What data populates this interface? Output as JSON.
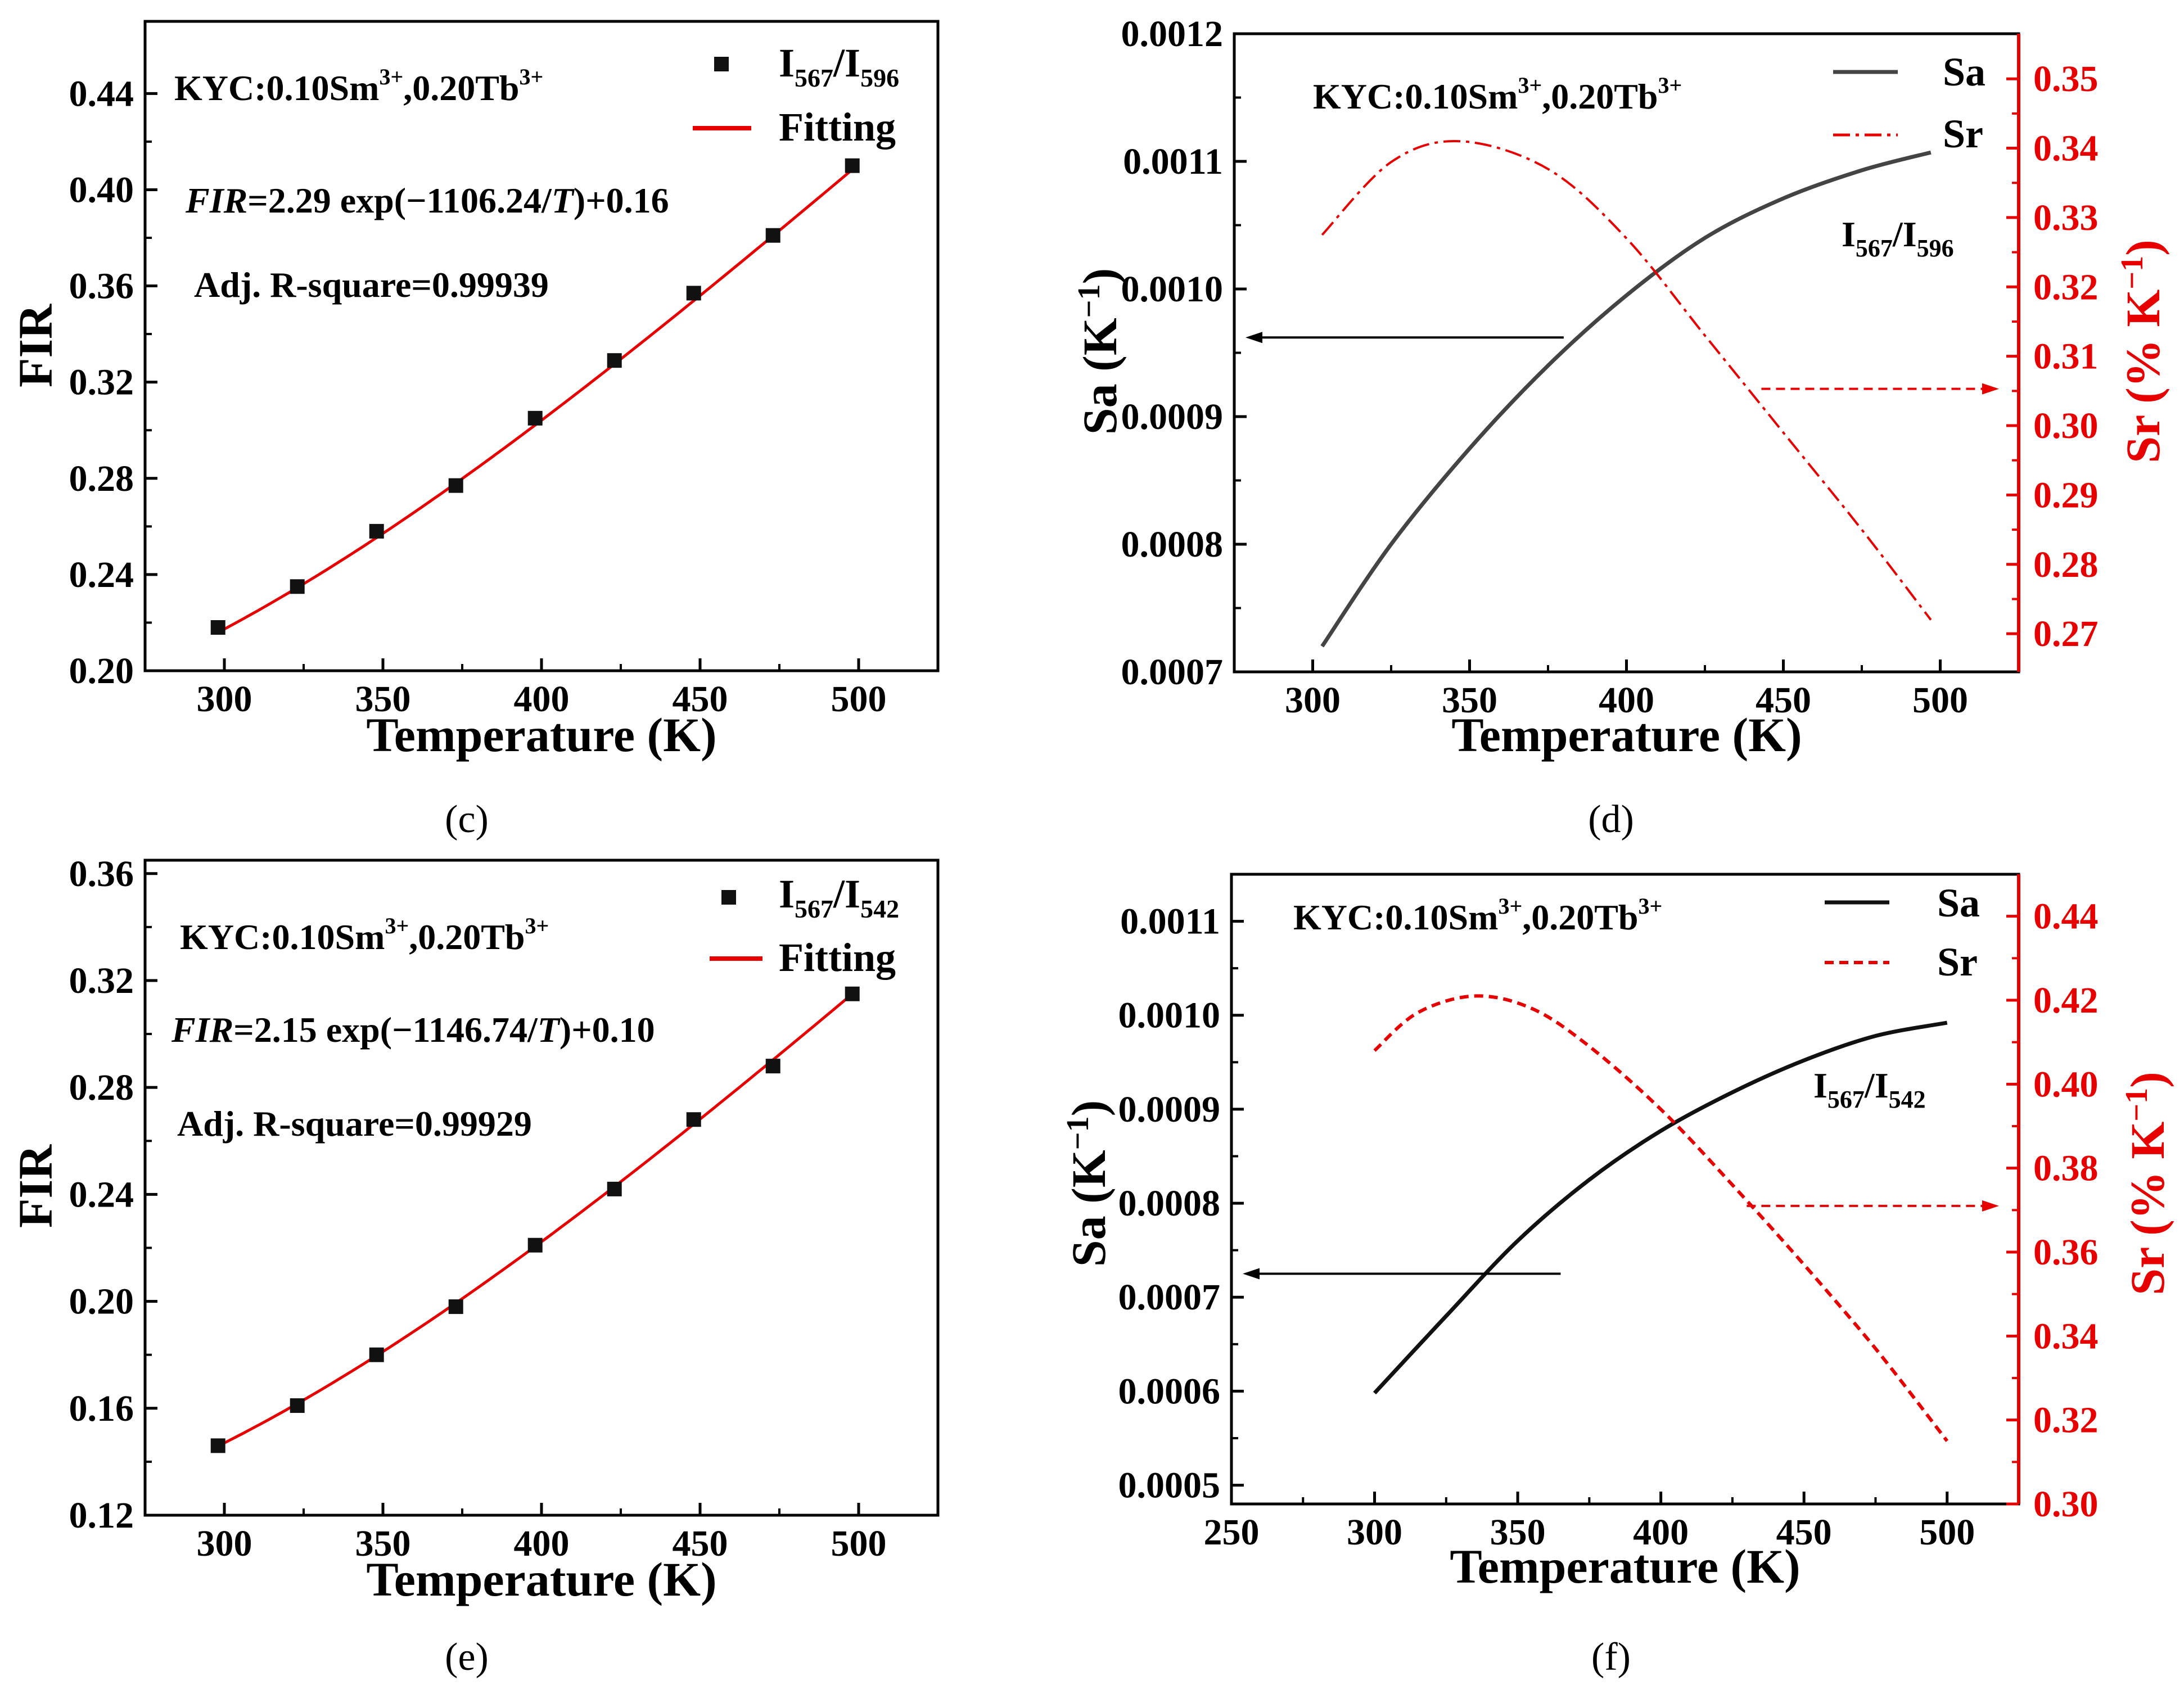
{
  "figure": {
    "panels": [
      "c",
      "d",
      "e",
      "f"
    ]
  },
  "chart_data": [
    {
      "id": "c",
      "type": "scatter",
      "panel_label": "(c)",
      "xlabel": "Temperature (K)",
      "ylabel": "FIR",
      "xlim": [
        275,
        525
      ],
      "ylim": [
        0.2,
        0.47
      ],
      "xticks": [
        300,
        350,
        400,
        450,
        500
      ],
      "yticks": [
        0.2,
        0.24,
        0.28,
        0.32,
        0.36,
        0.4,
        0.44
      ],
      "ytick_labels": [
        "0.20",
        "0.24",
        "0.28",
        "0.32",
        "0.36",
        "0.40",
        "0.44"
      ],
      "sample_text": "KYC:0.10Sm",
      "sample_sup1": "3+",
      "sample_mid": ",0.20Tb",
      "sample_sup2": "3+",
      "equation_fir": "FIR",
      "equation_part1": "=2.29 exp(−1106.24/",
      "equation_T": "T",
      "equation_part2": ")+0.16",
      "r_square": "Adj. R-square=0.99939",
      "legend_scatter_base": "I",
      "legend_scatter_sub1": "567",
      "legend_scatter_slash": "/I",
      "legend_scatter_sub2": "596",
      "legend_fit": "Fitting",
      "fit_params": {
        "A": 2.29,
        "B": 1106.24,
        "C": 0.16
      },
      "fit_range": [
        298,
        498
      ],
      "series": [
        {
          "name": "I567/I596",
          "x": [
            298,
            323,
            348,
            373,
            398,
            423,
            448,
            473,
            498
          ],
          "y": [
            0.218,
            0.235,
            0.258,
            0.277,
            0.305,
            0.329,
            0.357,
            0.381,
            0.41
          ]
        }
      ],
      "colors": {
        "points": "#111111",
        "fit": "#e60000"
      }
    },
    {
      "id": "d",
      "type": "line",
      "panel_label": "(d)",
      "xlabel": "Temperature (K)",
      "ylabel": "Sa (K",
      "ylabel_sup": "−1",
      "ylabel_end": ")",
      "y2label": "Sr (% K",
      "y2label_sup": "−1",
      "y2label_end": ")",
      "xlim": [
        275,
        525
      ],
      "ylim": [
        0.0007,
        0.0012
      ],
      "y2lim": [
        0.2645,
        0.3565
      ],
      "xticks": [
        300,
        350,
        400,
        450,
        500
      ],
      "yticks": [
        0.0007,
        0.0008,
        0.0009,
        0.001,
        0.0011,
        0.0012
      ],
      "ytick_labels": [
        "0.0007",
        "0.0008",
        "0.0009",
        "0.0010",
        "0.0011",
        "0.0012"
      ],
      "y2ticks": [
        0.27,
        0.28,
        0.29,
        0.3,
        0.31,
        0.32,
        0.33,
        0.34,
        0.35
      ],
      "y2tick_labels": [
        "0.27",
        "0.28",
        "0.29",
        "0.30",
        "0.31",
        "0.32",
        "0.33",
        "0.34",
        "0.35"
      ],
      "sample_text": "KYC:0.10Sm",
      "sample_sup1": "3+",
      "sample_mid": ",0.20Tb",
      "sample_sup2": "3+",
      "ratio_base": "I",
      "ratio_sub1": "567",
      "ratio_slash": "/I",
      "ratio_sub2": "596",
      "legend_sa": "Sa",
      "legend_sr": "Sr",
      "series": [
        {
          "name": "Sa",
          "axis": "left",
          "x": [
            303,
            325,
            350,
            375,
            400,
            425,
            450,
            475,
            497
          ],
          "y": [
            0.00072,
            0.0008,
            0.000875,
            0.00094,
            0.000995,
            0.00104,
            0.001071,
            0.001093,
            0.001107
          ]
        },
        {
          "name": "Sr",
          "axis": "right",
          "x": [
            303,
            325,
            347,
            375,
            400,
            425,
            450,
            475,
            497
          ],
          "y": [
            0.3275,
            0.338,
            0.341,
            0.337,
            0.327,
            0.313,
            0.299,
            0.285,
            0.272
          ]
        }
      ],
      "arrows": {
        "left_at_sa": 0.000962,
        "left_from_x": 380,
        "right_at_sr": 0.3053,
        "right_from_x": 443
      },
      "colors": {
        "sa": "#444444",
        "sr": "#e60000",
        "right_axis": "#e60000"
      }
    },
    {
      "id": "e",
      "type": "scatter",
      "panel_label": "(e)",
      "xlabel": "Temperature (K)",
      "ylabel": "FIR",
      "xlim": [
        275,
        525
      ],
      "ylim": [
        0.12,
        0.365
      ],
      "xticks": [
        300,
        350,
        400,
        450,
        500
      ],
      "yticks": [
        0.12,
        0.16,
        0.2,
        0.24,
        0.28,
        0.32,
        0.36
      ],
      "ytick_labels": [
        "0.12",
        "0.16",
        "0.20",
        "0.24",
        "0.28",
        "0.32",
        "0.36"
      ],
      "sample_text": "KYC:0.10Sm",
      "sample_sup1": "3+",
      "sample_mid": ",0.20Tb",
      "sample_sup2": "3+",
      "equation_fir": "FIR",
      "equation_part1": "=2.15 exp(−1146.74/",
      "equation_T": "T",
      "equation_part2": ")+0.10",
      "r_square": "Adj. R-square=0.99929",
      "legend_scatter_base": "I",
      "legend_scatter_sub1": "567",
      "legend_scatter_slash": "/I",
      "legend_scatter_sub2": "542",
      "legend_fit": "Fitting",
      "fit_params": {
        "A": 2.15,
        "B": 1146.74,
        "C": 0.1
      },
      "fit_range": [
        298,
        498
      ],
      "series": [
        {
          "name": "I567/I542",
          "x": [
            298,
            323,
            348,
            373,
            398,
            423,
            448,
            473,
            498
          ],
          "y": [
            0.146,
            0.161,
            0.18,
            0.198,
            0.221,
            0.242,
            0.268,
            0.288,
            0.315
          ]
        }
      ],
      "colors": {
        "points": "#111111",
        "fit": "#e60000"
      }
    },
    {
      "id": "f",
      "type": "line",
      "panel_label": "(f)",
      "xlabel": "Temperature (K)",
      "ylabel": "Sa (K",
      "ylabel_sup": "−1",
      "ylabel_end": ")",
      "y2label": "Sr (% K",
      "y2label_sup": "−1",
      "y2label_end": ")",
      "xlim": [
        250,
        525
      ],
      "ylim": [
        0.00048,
        0.00115
      ],
      "y2lim": [
        0.3,
        0.45
      ],
      "xticks": [
        250,
        300,
        350,
        400,
        450,
        500
      ],
      "yticks": [
        0.0005,
        0.0006,
        0.0007,
        0.0008,
        0.0009,
        0.001,
        0.0011
      ],
      "ytick_labels": [
        "0.0005",
        "0.0006",
        "0.0007",
        "0.0008",
        "0.0009",
        "0.0010",
        "0.0011"
      ],
      "y2ticks": [
        0.3,
        0.32,
        0.34,
        0.36,
        0.38,
        0.4,
        0.42,
        0.44
      ],
      "y2tick_labels": [
        "0.30",
        "0.32",
        "0.34",
        "0.36",
        "0.38",
        "0.40",
        "0.42",
        "0.44"
      ],
      "sample_text": "KYC:0.10Sm",
      "sample_sup1": "3+",
      "sample_mid": ",0.20Tb",
      "sample_sup2": "3+",
      "ratio_base": "I",
      "ratio_sub1": "567",
      "ratio_slash": "/I",
      "ratio_sub2": "542",
      "legend_sa": "Sa",
      "legend_sr": "Sr",
      "series": [
        {
          "name": "Sa",
          "axis": "left",
          "x": [
            300,
            325,
            350,
            375,
            400,
            425,
            450,
            475,
            500
          ],
          "y": [
            0.000598,
            0.00068,
            0.00076,
            0.000825,
            0.000877,
            0.000918,
            0.000952,
            0.000978,
            0.000992
          ]
        },
        {
          "name": "Sr",
          "axis": "right",
          "x": [
            300,
            315,
            335,
            355,
            375,
            400,
            425,
            450,
            475,
            500
          ],
          "y": [
            0.408,
            0.417,
            0.421,
            0.418,
            0.409,
            0.394,
            0.376,
            0.357,
            0.337,
            0.315
          ]
        }
      ],
      "arrows": {
        "left_at_sa": 0.000725,
        "left_from_x": 365,
        "right_at_sr": 0.371,
        "right_from_x": 430
      },
      "colors": {
        "sa": "#111111",
        "sr": "#e60000",
        "right_axis": "#e60000"
      }
    }
  ]
}
